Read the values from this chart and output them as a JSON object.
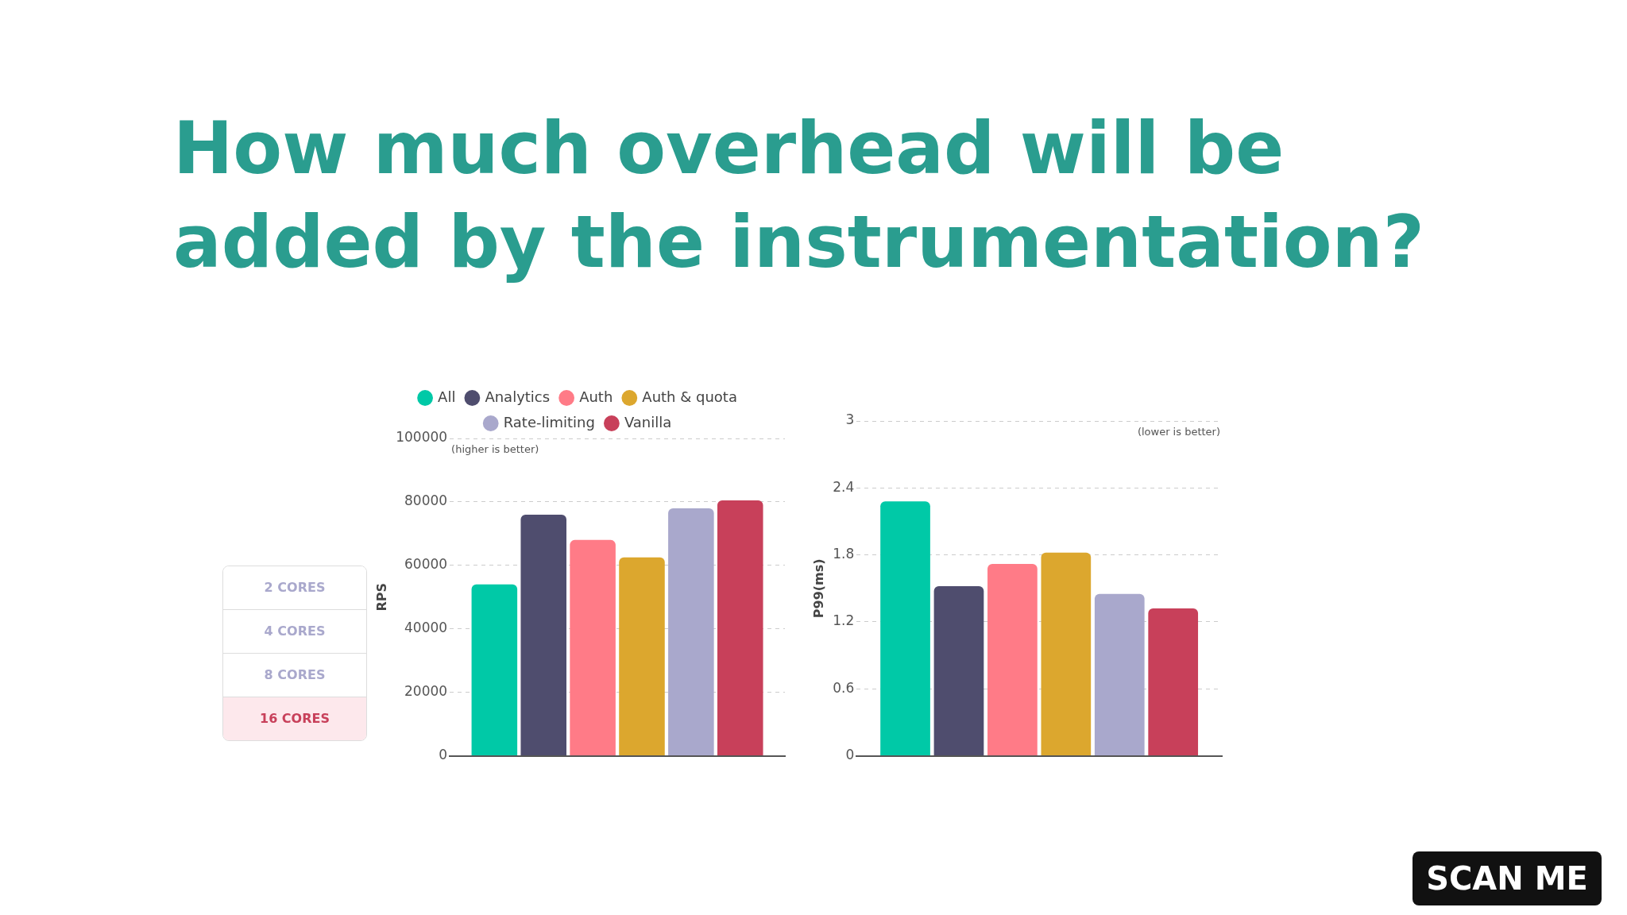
{
  "chart_data": [
    {
      "type": "bar",
      "title": "How much overhead will be added by the instrumentation?",
      "categories": [
        null
      ],
      "ylabel": "RPS",
      "ylim": [
        0,
        100000
      ],
      "yticks": [
        0,
        20000,
        40000,
        60000,
        80000,
        100000
      ],
      "grid": "y",
      "legend": "top",
      "annotations": [
        "(higher is better)"
      ],
      "series": [
        {
          "name": "All",
          "color": "#00c9a7",
          "values": [
            54000
          ]
        },
        {
          "name": "Analytics",
          "color": "#4f4d6e",
          "values": [
            76000
          ]
        },
        {
          "name": "Auth",
          "color": "#ff7b87",
          "values": [
            68000
          ]
        },
        {
          "name": "Auth & quota",
          "color": "#dca72e",
          "values": [
            62500
          ]
        },
        {
          "name": "Rate-limiting",
          "color": "#a9a8cc",
          "values": [
            78000
          ]
        },
        {
          "name": "Vanilla",
          "color": "#c8405a",
          "values": [
            80500
          ]
        }
      ]
    },
    {
      "type": "bar",
      "categories": [
        null
      ],
      "ylabel": "P99(ms)",
      "ylim": [
        0,
        3
      ],
      "yticks": [
        0,
        0.6,
        1.2,
        1.8,
        2.4,
        3
      ],
      "grid": "y",
      "annotations": [
        "(lower is better)"
      ],
      "series": [
        {
          "color": "#00c9a7",
          "values": [
            2.28
          ]
        },
        {
          "color": "#4f4d6e",
          "values": [
            1.52
          ]
        },
        {
          "color": "#ff7b87",
          "values": [
            1.72
          ]
        },
        {
          "color": "#dca72e",
          "values": [
            1.82
          ]
        },
        {
          "color": "#a9a8cc",
          "values": [
            1.45
          ]
        },
        {
          "color": "#c8405a",
          "values": [
            1.32
          ]
        }
      ]
    },
    {
      "type": "other",
      "annotations": [
        "2 CORES",
        "4 CORES",
        "8 CORES",
        "16 CORES",
        "SCAN ME"
      ]
    }
  ]
}
